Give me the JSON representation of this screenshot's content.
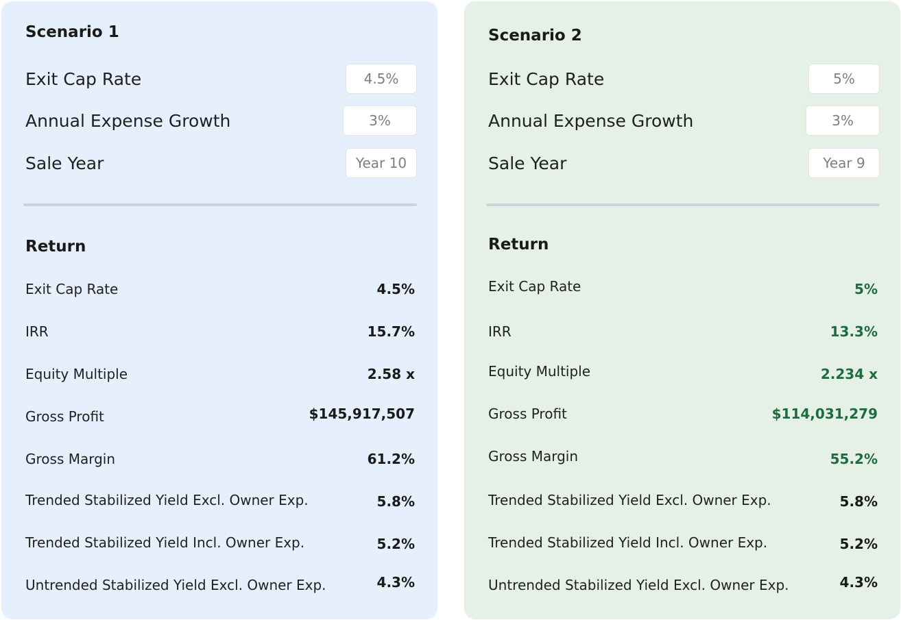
{
  "scenario1": {
    "title": "Scenario 1",
    "inputs": [
      {
        "label": "Exit Cap Rate",
        "value": "4.5%"
      },
      {
        "label": "Annual Expense Growth",
        "value": "3%"
      },
      {
        "label": "Sale Year",
        "value": "Year 10"
      }
    ],
    "return_title": "Return",
    "returns": [
      {
        "label": "Exit Cap Rate",
        "value": "4.5%"
      },
      {
        "label": "IRR",
        "value": "15.7%"
      },
      {
        "label": "Equity Multiple",
        "value": "2.58 x"
      },
      {
        "label": "Gross Profit",
        "value": "$145,917,507"
      },
      {
        "label": "Gross Margin",
        "value": "61.2%"
      },
      {
        "label": "Trended Stabilized Yield Excl. Owner Exp.",
        "value": "5.8%"
      },
      {
        "label": "Trended Stabilized Yield Incl. Owner Exp.",
        "value": "5.2%"
      },
      {
        "label": "Untrended Stabilized Yield Excl. Owner Exp.",
        "value": "4.3%"
      }
    ]
  },
  "scenario2": {
    "title": "Scenario 2",
    "inputs": [
      {
        "label": "Exit Cap Rate",
        "value": "5%"
      },
      {
        "label": "Annual Expense Growth",
        "value": "3%"
      },
      {
        "label": "Sale Year",
        "value": "Year 9"
      }
    ],
    "return_title": "Return",
    "returns": [
      {
        "label": "Exit Cap Rate",
        "value": "5%"
      },
      {
        "label": "IRR",
        "value": "13.3%"
      },
      {
        "label": "Equity Multiple",
        "value": "2.234 x"
      },
      {
        "label": "Gross Profit",
        "value": "$114,031,279"
      },
      {
        "label": "Gross Margin",
        "value": "55.2%"
      },
      {
        "label": "Trended Stabilized Yield Excl. Owner Exp.",
        "value": "5.8%"
      },
      {
        "label": "Trended Stabilized Yield Incl. Owner Exp.",
        "value": "5.2%"
      },
      {
        "label": "Untrended Stabilized Yield Excl. Owner Exp.",
        "value": "4.3%"
      }
    ]
  },
  "colors": {
    "scenario1_bg": "#e6f0fc",
    "scenario2_bg": "#e5f0e7",
    "scenario2_changed_value": "#1f6b3d"
  }
}
